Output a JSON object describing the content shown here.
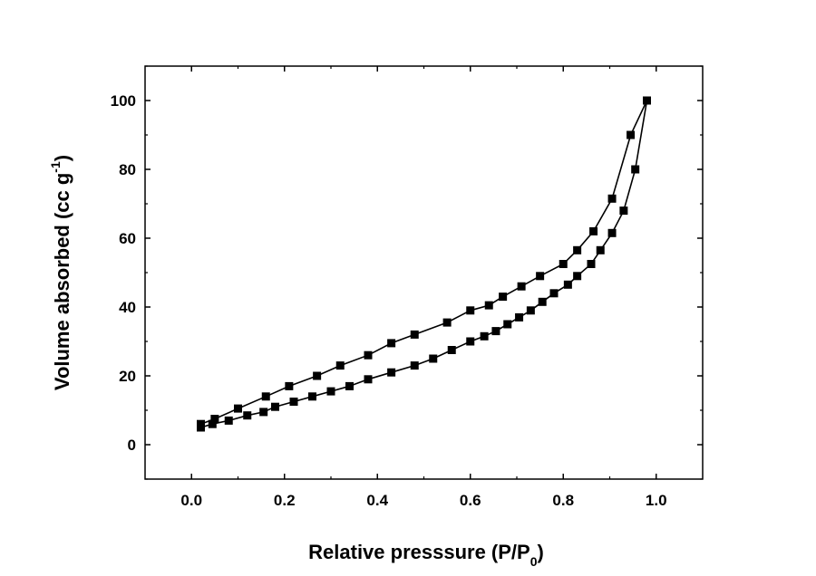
{
  "chart_data": {
    "type": "line",
    "title": "",
    "xlabel": {
      "main": "Relative presssure (P/P",
      "sub": "0",
      "close": ")"
    },
    "ylabel": {
      "main": "Volume absorbed (cc g",
      "sup": "-1",
      "close": ")"
    },
    "xlim": [
      -0.1,
      1.1
    ],
    "ylim": [
      -10,
      110
    ],
    "xticks": [
      0.0,
      0.2,
      0.4,
      0.6,
      0.8,
      1.0
    ],
    "xtick_labels": [
      "0.0",
      "0.2",
      "0.4",
      "0.6",
      "0.8",
      "1.0"
    ],
    "yticks": [
      0,
      20,
      40,
      60,
      80,
      100
    ],
    "ytick_labels": [
      "0",
      "20",
      "40",
      "60",
      "80",
      "100"
    ],
    "grid": false,
    "marker": "square",
    "line_color": "#000000",
    "series": [
      {
        "x": [
          0.02,
          0.05,
          0.1,
          0.16,
          0.21,
          0.27,
          0.32,
          0.38,
          0.43,
          0.48,
          0.55,
          0.6,
          0.64,
          0.67,
          0.71,
          0.75,
          0.8,
          0.83,
          0.865,
          0.905,
          0.945,
          0.98
        ],
        "y": [
          6,
          7.5,
          10.5,
          14,
          17,
          20,
          23,
          26,
          29.5,
          32,
          35.5,
          39,
          40.5,
          43,
          46,
          49,
          52.5,
          56.5,
          62,
          71.5,
          90,
          100
        ]
      },
      {
        "x": [
          0.98,
          0.955,
          0.93,
          0.905,
          0.88,
          0.86,
          0.83,
          0.81,
          0.78,
          0.755,
          0.73,
          0.705,
          0.68,
          0.655,
          0.63,
          0.6,
          0.56,
          0.52,
          0.48,
          0.43,
          0.38,
          0.34,
          0.3,
          0.26,
          0.22,
          0.18,
          0.155,
          0.12,
          0.08,
          0.045,
          0.02
        ],
        "y": [
          100,
          80,
          68,
          61.5,
          56.5,
          52.5,
          49,
          46.5,
          44,
          41.5,
          39,
          37,
          35,
          33,
          31.5,
          30,
          27.5,
          25,
          23,
          21,
          19,
          17,
          15.5,
          14,
          12.5,
          11,
          9.5,
          8.5,
          7,
          6,
          5
        ]
      }
    ]
  }
}
